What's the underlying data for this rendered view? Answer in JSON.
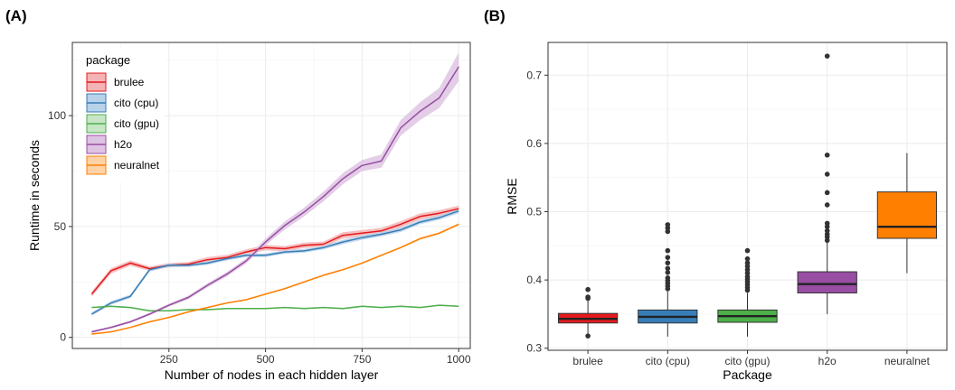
{
  "chart_data": [
    {
      "type": "line",
      "panel_label": "(A)",
      "xlabel": "Number of nodes in each hidden layer",
      "ylabel": "Runtime in seconds",
      "xlim": [
        0,
        1030
      ],
      "ylim": [
        -5,
        133
      ],
      "xticks": [
        250,
        500,
        750,
        1000
      ],
      "yticks": [
        0,
        50,
        100
      ],
      "grid": true,
      "legend": {
        "title": "package",
        "placement": "top-left"
      },
      "x": [
        50,
        100,
        150,
        200,
        250,
        300,
        350,
        400,
        450,
        500,
        550,
        600,
        650,
        700,
        750,
        800,
        850,
        900,
        950,
        1000
      ],
      "series": [
        {
          "name": "brulee",
          "color": "#E41A1C",
          "fill": "#F4B4B5",
          "values": [
            19.5,
            30,
            33.5,
            31,
            32.5,
            33,
            35,
            36,
            38.5,
            40.5,
            40,
            41.5,
            42,
            46,
            47,
            48,
            51,
            54.5,
            56,
            58
          ],
          "band": [
            1.2,
            1.2,
            1.2,
            1.0,
            1.0,
            1.0,
            1.2,
            1.2,
            1.2,
            1.2,
            1.2,
            1.2,
            1.2,
            1.4,
            1.4,
            1.4,
            1.4,
            1.4,
            1.4,
            1.4
          ]
        },
        {
          "name": "cito (cpu)",
          "color": "#377EB8",
          "fill": "#B8D2EA",
          "values": [
            10.5,
            15.5,
            18.5,
            30.5,
            32.5,
            32.5,
            33.5,
            35.5,
            37,
            37,
            38.5,
            39,
            40.5,
            43,
            45,
            46.5,
            48.5,
            52,
            54,
            57
          ],
          "band": [
            0.8,
            0.8,
            0.8,
            0.8,
            0.8,
            0.8,
            0.8,
            0.8,
            0.8,
            0.8,
            0.8,
            0.8,
            0.8,
            1.0,
            1.0,
            1.0,
            1.0,
            1.0,
            1.0,
            1.0
          ]
        },
        {
          "name": "cito (gpu)",
          "color": "#4DAF4A",
          "fill": "#C7E6C6",
          "values": [
            13.5,
            14,
            13.5,
            12,
            12,
            12.5,
            12.5,
            13,
            13,
            13,
            13.5,
            13,
            13.5,
            13,
            14,
            13.5,
            14,
            13.5,
            14.5,
            14
          ],
          "band": [
            0.3,
            0.3,
            0.3,
            0.3,
            0.3,
            0.3,
            0.3,
            0.3,
            0.3,
            0.3,
            0.3,
            0.3,
            0.3,
            0.3,
            0.3,
            0.3,
            0.3,
            0.3,
            0.3,
            0.3
          ]
        },
        {
          "name": "h2o",
          "color": "#984EA3",
          "fill": "#DEC4E3",
          "values": [
            2.5,
            4.5,
            7,
            10.5,
            14.5,
            18,
            23.5,
            28.5,
            34.5,
            43,
            50.5,
            56.5,
            63.5,
            71.5,
            77.5,
            79.5,
            94.5,
            102,
            108,
            122
          ],
          "band": [
            0.5,
            0.5,
            0.5,
            0.6,
            0.7,
            0.8,
            0.9,
            1.0,
            1.1,
            1.5,
            1.8,
            2.0,
            2.2,
            2.5,
            2.5,
            3.0,
            3.5,
            4.0,
            4.5,
            6.5
          ]
        },
        {
          "name": "neuralnet",
          "color": "#FF7F00",
          "fill": "#FFD2A6",
          "values": [
            1.5,
            2.5,
            4.5,
            7,
            9,
            11.5,
            13.5,
            15.5,
            17,
            19.5,
            22,
            25,
            28,
            30.5,
            33.5,
            37,
            40.5,
            44.5,
            47,
            51
          ],
          "band": [
            0.3,
            0.3,
            0.3,
            0.3,
            0.3,
            0.3,
            0.3,
            0.3,
            0.3,
            0.4,
            0.4,
            0.4,
            0.4,
            0.4,
            0.4,
            0.4,
            0.4,
            0.5,
            0.5,
            0.5
          ]
        }
      ]
    },
    {
      "type": "box",
      "panel_label": "(B)",
      "xlabel": "Package",
      "ylabel": "RMSE",
      "ylim": [
        0.297,
        0.748
      ],
      "yticks": [
        0.3,
        0.4,
        0.5,
        0.6,
        0.7
      ],
      "grid": true,
      "categories": [
        "brulee",
        "cito (cpu)",
        "cito (gpu)",
        "h2o",
        "neuralnet"
      ],
      "boxes": [
        {
          "name": "brulee",
          "color": "#E41A1C",
          "median": 0.343,
          "q1": 0.337,
          "q3": 0.351,
          "whisker_low": 0.318,
          "whisker_high": 0.372,
          "outliers": [
            0.318,
            0.373,
            0.375,
            0.386
          ]
        },
        {
          "name": "cito (cpu)",
          "color": "#377EB8",
          "median": 0.346,
          "q1": 0.337,
          "q3": 0.356,
          "whisker_low": 0.317,
          "whisker_high": 0.383,
          "outliers": [
            0.387,
            0.391,
            0.395,
            0.399,
            0.403,
            0.411,
            0.417,
            0.425,
            0.433,
            0.443,
            0.471,
            0.476,
            0.481
          ]
        },
        {
          "name": "cito (gpu)",
          "color": "#4DAF4A",
          "median": 0.347,
          "q1": 0.338,
          "q3": 0.356,
          "whisker_low": 0.317,
          "whisker_high": 0.381,
          "outliers": [
            0.385,
            0.389,
            0.393,
            0.397,
            0.401,
            0.405,
            0.41,
            0.415,
            0.42,
            0.425,
            0.431,
            0.443
          ]
        },
        {
          "name": "h2o",
          "color": "#984EA3",
          "median": 0.394,
          "q1": 0.381,
          "q3": 0.412,
          "whisker_low": 0.35,
          "whisker_high": 0.455,
          "outliers": [
            0.458,
            0.463,
            0.467,
            0.472,
            0.478,
            0.483,
            0.51,
            0.528,
            0.555,
            0.583,
            0.728
          ]
        },
        {
          "name": "neuralnet",
          "color": "#FF7F00",
          "median": 0.478,
          "q1": 0.461,
          "q3": 0.529,
          "whisker_low": 0.41,
          "whisker_high": 0.586,
          "outliers": []
        }
      ]
    }
  ]
}
